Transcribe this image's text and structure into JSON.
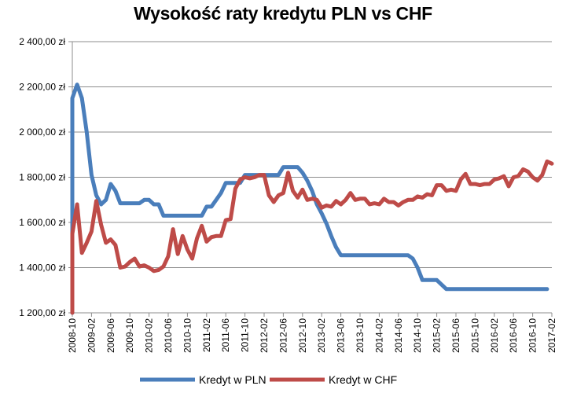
{
  "chart_data": {
    "type": "line",
    "title": "Wysokość raty kredytu PLN vs CHF",
    "xlabel": "",
    "ylabel": "",
    "ylim": [
      1200,
      2400
    ],
    "yticks": [
      1200,
      1400,
      1600,
      1800,
      2000,
      2200,
      2400
    ],
    "ytick_labels": [
      "1 200,00 zł",
      "1 400,00 zł",
      "1 600,00 zł",
      "1 800,00 zł",
      "2 000,00 zł",
      "2 200,00 zł",
      "2 400,00 zł"
    ],
    "x_start": "2008-10",
    "x_end": "2017-02",
    "xtick_labels": [
      "2008-10",
      "2009-02",
      "2009-06",
      "2009-10",
      "2010-02",
      "2010-06",
      "2010-10",
      "2011-02",
      "2011-06",
      "2011-10",
      "2012-02",
      "2012-06",
      "2012-10",
      "2013-02",
      "2013-06",
      "2013-10",
      "2014-02",
      "2014-06",
      "2014-10",
      "2015-02",
      "2015-06",
      "2015-10",
      "2016-02",
      "2016-06",
      "2016-10",
      "2017-02"
    ],
    "grid": "horizontal",
    "legend_position": "bottom",
    "series": [
      {
        "name": "Kredyt w PLN",
        "color": "#4a7ebb",
        "points": [
          [
            "2008-10",
            1200
          ],
          [
            "2008-10",
            2150
          ],
          [
            "2008-11",
            2210
          ],
          [
            "2008-12",
            2150
          ],
          [
            "2009-01",
            2000
          ],
          [
            "2009-02",
            1810
          ],
          [
            "2009-03",
            1720
          ],
          [
            "2009-04",
            1680
          ],
          [
            "2009-05",
            1700
          ],
          [
            "2009-06",
            1770
          ],
          [
            "2009-07",
            1740
          ],
          [
            "2009-08",
            1685
          ],
          [
            "2009-09",
            1685
          ],
          [
            "2009-10",
            1685
          ],
          [
            "2009-11",
            1685
          ],
          [
            "2009-12",
            1685
          ],
          [
            "2010-01",
            1700
          ],
          [
            "2010-02",
            1700
          ],
          [
            "2010-03",
            1680
          ],
          [
            "2010-04",
            1680
          ],
          [
            "2010-05",
            1630
          ],
          [
            "2010-06",
            1630
          ],
          [
            "2010-07",
            1630
          ],
          [
            "2010-08",
            1630
          ],
          [
            "2010-09",
            1630
          ],
          [
            "2010-10",
            1630
          ],
          [
            "2010-11",
            1630
          ],
          [
            "2010-12",
            1630
          ],
          [
            "2011-01",
            1630
          ],
          [
            "2011-02",
            1670
          ],
          [
            "2011-03",
            1670
          ],
          [
            "2011-04",
            1700
          ],
          [
            "2011-05",
            1730
          ],
          [
            "2011-06",
            1775
          ],
          [
            "2011-07",
            1775
          ],
          [
            "2011-08",
            1775
          ],
          [
            "2011-09",
            1775
          ],
          [
            "2011-10",
            1810
          ],
          [
            "2011-11",
            1810
          ],
          [
            "2011-12",
            1810
          ],
          [
            "2012-01",
            1810
          ],
          [
            "2012-02",
            1810
          ],
          [
            "2012-03",
            1810
          ],
          [
            "2012-04",
            1810
          ],
          [
            "2012-05",
            1810
          ],
          [
            "2012-06",
            1845
          ],
          [
            "2012-07",
            1845
          ],
          [
            "2012-08",
            1845
          ],
          [
            "2012-09",
            1845
          ],
          [
            "2012-10",
            1820
          ],
          [
            "2012-11",
            1785
          ],
          [
            "2012-12",
            1740
          ],
          [
            "2013-01",
            1680
          ],
          [
            "2013-02",
            1640
          ],
          [
            "2013-03",
            1595
          ],
          [
            "2013-04",
            1540
          ],
          [
            "2013-05",
            1490
          ],
          [
            "2013-06",
            1455
          ],
          [
            "2013-07",
            1455
          ],
          [
            "2013-10",
            1455
          ],
          [
            "2014-02",
            1455
          ],
          [
            "2014-06",
            1455
          ],
          [
            "2014-08",
            1455
          ],
          [
            "2014-09",
            1440
          ],
          [
            "2014-10",
            1400
          ],
          [
            "2014-11",
            1345
          ],
          [
            "2015-02",
            1345
          ],
          [
            "2015-03",
            1325
          ],
          [
            "2015-04",
            1305
          ],
          [
            "2015-06",
            1305
          ],
          [
            "2015-10",
            1305
          ],
          [
            "2016-02",
            1305
          ],
          [
            "2016-06",
            1305
          ],
          [
            "2016-10",
            1305
          ],
          [
            "2017-01",
            1305
          ]
        ]
      },
      {
        "name": "Kredyt w CHF",
        "color": "#be4b48",
        "points": [
          [
            "2008-10",
            1200
          ],
          [
            "2008-10",
            1550
          ],
          [
            "2008-11",
            1680
          ],
          [
            "2008-12",
            1465
          ],
          [
            "2009-01",
            1510
          ],
          [
            "2009-02",
            1560
          ],
          [
            "2009-03",
            1695
          ],
          [
            "2009-04",
            1590
          ],
          [
            "2009-05",
            1510
          ],
          [
            "2009-06",
            1525
          ],
          [
            "2009-07",
            1500
          ],
          [
            "2009-08",
            1400
          ],
          [
            "2009-09",
            1405
          ],
          [
            "2009-10",
            1425
          ],
          [
            "2009-11",
            1440
          ],
          [
            "2009-12",
            1405
          ],
          [
            "2010-01",
            1410
          ],
          [
            "2010-02",
            1400
          ],
          [
            "2010-03",
            1385
          ],
          [
            "2010-04",
            1390
          ],
          [
            "2010-05",
            1405
          ],
          [
            "2010-06",
            1450
          ],
          [
            "2010-07",
            1570
          ],
          [
            "2010-08",
            1460
          ],
          [
            "2010-09",
            1540
          ],
          [
            "2010-10",
            1480
          ],
          [
            "2010-11",
            1440
          ],
          [
            "2010-12",
            1530
          ],
          [
            "2011-01",
            1585
          ],
          [
            "2011-02",
            1515
          ],
          [
            "2011-03",
            1535
          ],
          [
            "2011-04",
            1540
          ],
          [
            "2011-05",
            1540
          ],
          [
            "2011-06",
            1610
          ],
          [
            "2011-07",
            1615
          ],
          [
            "2011-08",
            1750
          ],
          [
            "2011-09",
            1790
          ],
          [
            "2011-10",
            1800
          ],
          [
            "2011-11",
            1795
          ],
          [
            "2011-12",
            1800
          ],
          [
            "2012-01",
            1810
          ],
          [
            "2012-02",
            1810
          ],
          [
            "2012-03",
            1720
          ],
          [
            "2012-04",
            1690
          ],
          [
            "2012-05",
            1720
          ],
          [
            "2012-06",
            1730
          ],
          [
            "2012-07",
            1820
          ],
          [
            "2012-08",
            1740
          ],
          [
            "2012-09",
            1710
          ],
          [
            "2012-10",
            1745
          ],
          [
            "2012-11",
            1700
          ],
          [
            "2012-12",
            1705
          ],
          [
            "2013-01",
            1700
          ],
          [
            "2013-02",
            1665
          ],
          [
            "2013-03",
            1675
          ],
          [
            "2013-04",
            1670
          ],
          [
            "2013-05",
            1695
          ],
          [
            "2013-06",
            1680
          ],
          [
            "2013-07",
            1700
          ],
          [
            "2013-08",
            1730
          ],
          [
            "2013-09",
            1700
          ],
          [
            "2013-10",
            1705
          ],
          [
            "2013-11",
            1705
          ],
          [
            "2013-12",
            1680
          ],
          [
            "2014-01",
            1685
          ],
          [
            "2014-02",
            1680
          ],
          [
            "2014-03",
            1705
          ],
          [
            "2014-04",
            1690
          ],
          [
            "2014-05",
            1690
          ],
          [
            "2014-06",
            1675
          ],
          [
            "2014-07",
            1690
          ],
          [
            "2014-08",
            1700
          ],
          [
            "2014-09",
            1700
          ],
          [
            "2014-10",
            1715
          ],
          [
            "2014-11",
            1710
          ],
          [
            "2014-12",
            1725
          ],
          [
            "2015-01",
            1720
          ],
          [
            "2015-02",
            1765
          ],
          [
            "2015-03",
            1765
          ],
          [
            "2015-04",
            1740
          ],
          [
            "2015-05",
            1745
          ],
          [
            "2015-06",
            1740
          ],
          [
            "2015-07",
            1790
          ],
          [
            "2015-08",
            1815
          ],
          [
            "2015-09",
            1770
          ],
          [
            "2015-10",
            1770
          ],
          [
            "2015-11",
            1765
          ],
          [
            "2015-12",
            1770
          ],
          [
            "2016-01",
            1770
          ],
          [
            "2016-02",
            1790
          ],
          [
            "2016-03",
            1795
          ],
          [
            "2016-04",
            1805
          ],
          [
            "2016-05",
            1760
          ],
          [
            "2016-06",
            1800
          ],
          [
            "2016-07",
            1805
          ],
          [
            "2016-08",
            1835
          ],
          [
            "2016-09",
            1825
          ],
          [
            "2016-10",
            1800
          ],
          [
            "2016-11",
            1785
          ],
          [
            "2016-12",
            1810
          ],
          [
            "2017-01",
            1870
          ],
          [
            "2017-02",
            1860
          ]
        ]
      }
    ]
  }
}
